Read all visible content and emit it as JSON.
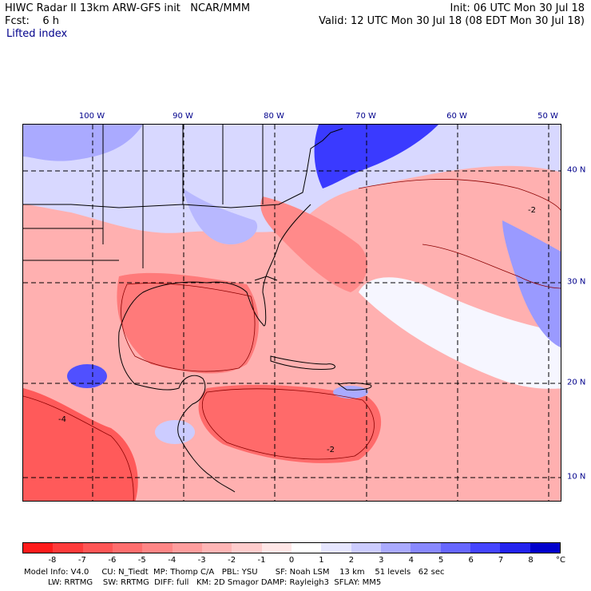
{
  "header": {
    "line1_left": "HIWC Radar II 13km ARW-GFS init   NCAR/MMM",
    "line1_right": "Init: 06 UTC Mon 30 Jul 18",
    "line2_left": "Fcst:    6 h",
    "line2_right": "Valid: 12 UTC Mon 30 Jul 18 (08 EDT Mon 30 Jul 18)",
    "field_label": "Lifted index"
  },
  "map": {
    "longitude_labels": [
      "100 W",
      "90 W",
      "80 W",
      "70 W",
      "60 W",
      "50 W"
    ],
    "latitude_labels": [
      "40 N",
      "30 N",
      "20 N",
      "10 N"
    ],
    "contour_labels": [
      "-2",
      "-4",
      "-2"
    ]
  },
  "colorbar": {
    "labels": [
      "-8",
      "-7",
      "-6",
      "-5",
      "-4",
      "-3",
      "-2",
      "-1",
      "0",
      "1",
      "2",
      "3",
      "4",
      "5",
      "6",
      "7",
      "8"
    ],
    "unit": "°C",
    "colors": [
      "#ff1a1a",
      "#ff3a3a",
      "#ff5555",
      "#ff6d6d",
      "#ff8585",
      "#ff9d9d",
      "#ffb5b5",
      "#ffcccc",
      "#ffe6e6",
      "#ffffff",
      "#e6e6ff",
      "#ccccff",
      "#aaaaff",
      "#8888ff",
      "#6666ff",
      "#4444ff",
      "#2222ee",
      "#0000cc"
    ]
  },
  "model_info": {
    "line1": "Model Info: V4.0     CU: N_Tiedt  MP: Thomp C/A   PBL: YSU       SF: Noah LSM    13 km    51 levels   62 sec",
    "line2": "LW: RRTMG    SW: RRTMG  DIFF: full   KM: 2D Smagor DAMP: Rayleigh3  SFLAY: MM5"
  }
}
